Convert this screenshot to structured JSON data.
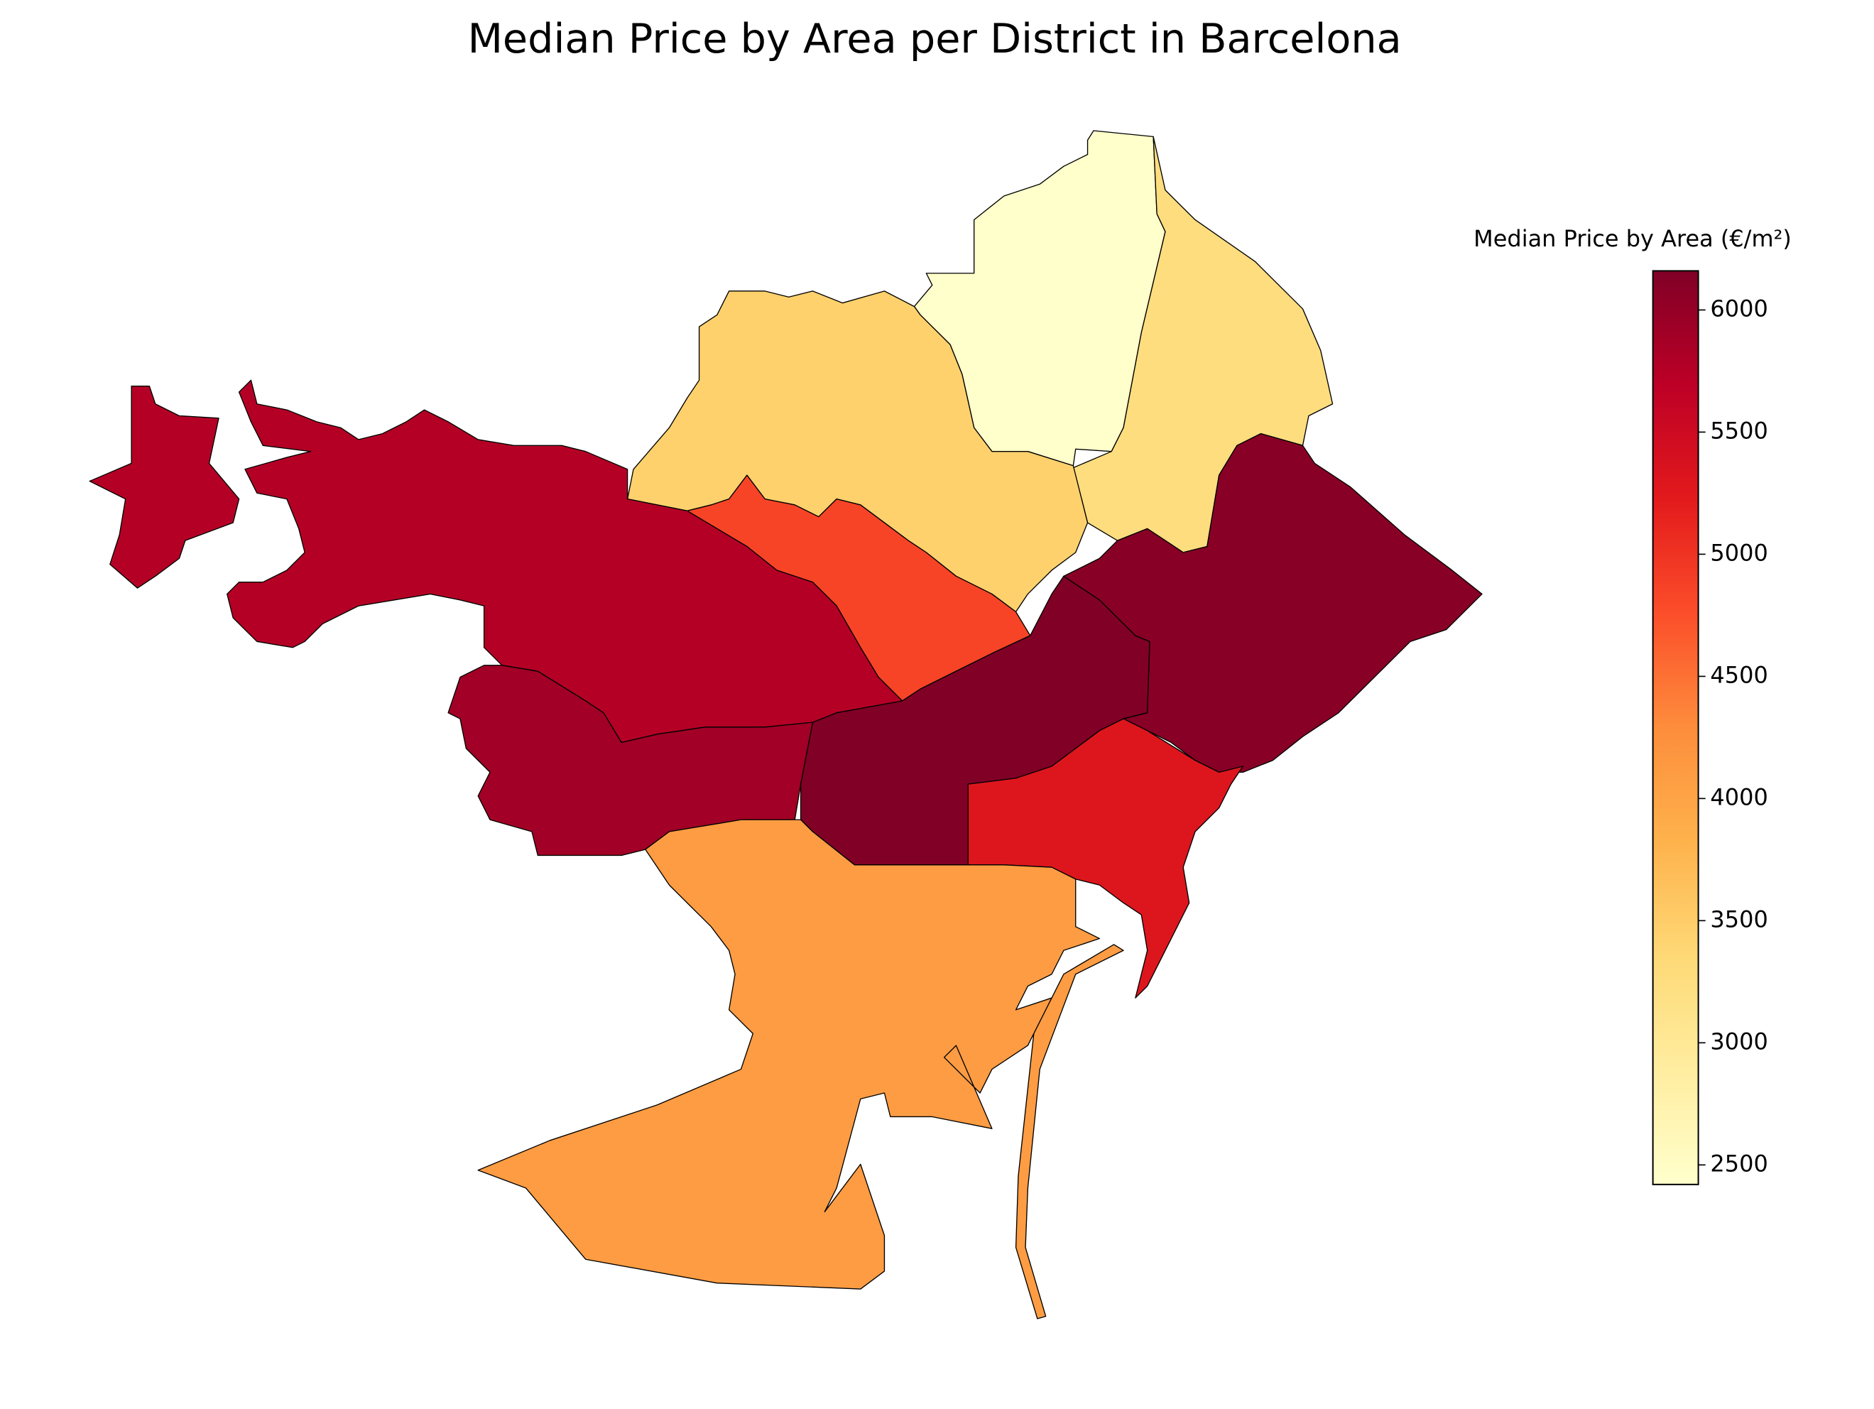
{
  "chart_data": {
    "type": "choropleth",
    "title": "Median Price by Area per District in Barcelona",
    "colorbar_label": "Median Price by Area (€/m²)",
    "colormap": "YlOrRd",
    "clim": [
      2420,
      6160
    ],
    "ticks": [
      2500,
      3000,
      3500,
      4000,
      4500,
      5000,
      5500,
      6000
    ],
    "values": [
      2430,
      3250,
      3450,
      4850,
      5750,
      5900,
      6150,
      6100,
      5300,
      4100
    ]
  }
}
